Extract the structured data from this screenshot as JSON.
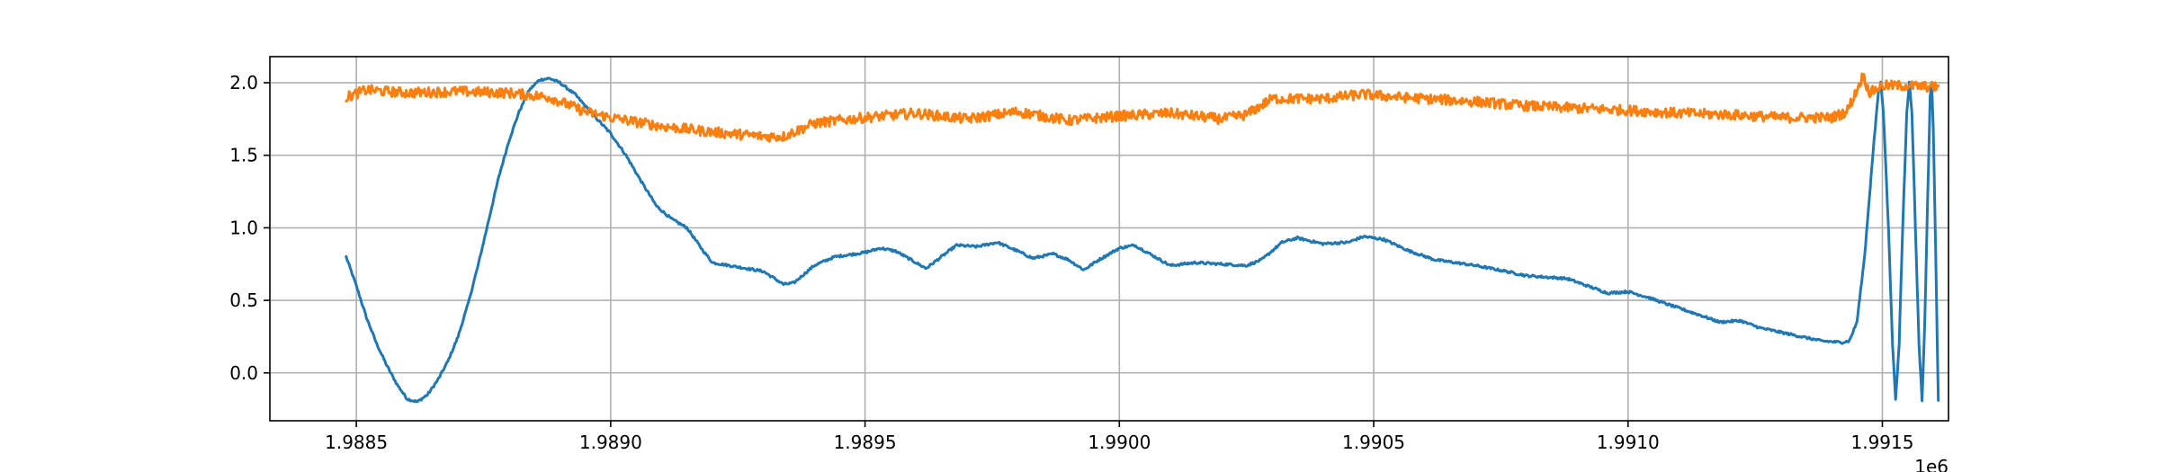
{
  "chart_data": {
    "type": "line",
    "title": "",
    "xlabel": "",
    "ylabel": "",
    "x_offset_label": "1e6",
    "xlim": [
      1988330,
      1991630
    ],
    "ylim": [
      -0.33,
      2.18
    ],
    "grid": true,
    "x_ticks": [
      {
        "value": 1988500,
        "label": "1.9885"
      },
      {
        "value": 1989000,
        "label": "1.9890"
      },
      {
        "value": 1989500,
        "label": "1.9895"
      },
      {
        "value": 1990000,
        "label": "1.9900"
      },
      {
        "value": 1990500,
        "label": "1.9905"
      },
      {
        "value": 1991000,
        "label": "1.9910"
      },
      {
        "value": 1991500,
        "label": "1.9915"
      }
    ],
    "y_ticks": [
      {
        "value": 0.0,
        "label": "0.0"
      },
      {
        "value": 0.5,
        "label": "0.5"
      },
      {
        "value": 1.0,
        "label": "1.0"
      },
      {
        "value": 1.5,
        "label": "1.5"
      },
      {
        "value": 2.0,
        "label": "2.0"
      }
    ],
    "series": [
      {
        "color": "#1f77b4",
        "noise": 0.008,
        "points": [
          [
            1988480,
            0.8
          ],
          [
            1988500,
            0.6
          ],
          [
            1988520,
            0.38
          ],
          [
            1988540,
            0.2
          ],
          [
            1988560,
            0.05
          ],
          [
            1988580,
            -0.08
          ],
          [
            1988600,
            -0.18
          ],
          [
            1988620,
            -0.2
          ],
          [
            1988640,
            -0.15
          ],
          [
            1988660,
            -0.05
          ],
          [
            1988680,
            0.08
          ],
          [
            1988700,
            0.25
          ],
          [
            1988720,
            0.48
          ],
          [
            1988740,
            0.75
          ],
          [
            1988760,
            1.05
          ],
          [
            1988780,
            1.35
          ],
          [
            1988800,
            1.6
          ],
          [
            1988820,
            1.8
          ],
          [
            1988840,
            1.95
          ],
          [
            1988860,
            2.02
          ],
          [
            1988880,
            2.03
          ],
          [
            1988900,
            2.0
          ],
          [
            1988930,
            1.92
          ],
          [
            1988960,
            1.8
          ],
          [
            1989000,
            1.65
          ],
          [
            1989030,
            1.5
          ],
          [
            1989060,
            1.32
          ],
          [
            1989090,
            1.15
          ],
          [
            1989120,
            1.06
          ],
          [
            1989150,
            1.0
          ],
          [
            1989180,
            0.85
          ],
          [
            1989200,
            0.76
          ],
          [
            1989250,
            0.73
          ],
          [
            1989300,
            0.7
          ],
          [
            1989340,
            0.61
          ],
          [
            1989360,
            0.62
          ],
          [
            1989400,
            0.74
          ],
          [
            1989440,
            0.8
          ],
          [
            1989500,
            0.83
          ],
          [
            1989530,
            0.86
          ],
          [
            1989560,
            0.84
          ],
          [
            1989600,
            0.76
          ],
          [
            1989620,
            0.72
          ],
          [
            1989650,
            0.8
          ],
          [
            1989680,
            0.88
          ],
          [
            1989720,
            0.87
          ],
          [
            1989760,
            0.9
          ],
          [
            1989800,
            0.84
          ],
          [
            1989830,
            0.79
          ],
          [
            1989870,
            0.82
          ],
          [
            1989900,
            0.78
          ],
          [
            1989930,
            0.71
          ],
          [
            1989960,
            0.78
          ],
          [
            1990000,
            0.86
          ],
          [
            1990030,
            0.88
          ],
          [
            1990060,
            0.82
          ],
          [
            1990100,
            0.74
          ],
          [
            1990150,
            0.76
          ],
          [
            1990200,
            0.75
          ],
          [
            1990250,
            0.74
          ],
          [
            1990280,
            0.78
          ],
          [
            1990320,
            0.9
          ],
          [
            1990350,
            0.93
          ],
          [
            1990400,
            0.89
          ],
          [
            1990450,
            0.9
          ],
          [
            1990480,
            0.94
          ],
          [
            1990520,
            0.92
          ],
          [
            1990570,
            0.84
          ],
          [
            1990620,
            0.78
          ],
          [
            1990700,
            0.74
          ],
          [
            1990760,
            0.7
          ],
          [
            1990800,
            0.67
          ],
          [
            1990880,
            0.65
          ],
          [
            1990920,
            0.6
          ],
          [
            1990960,
            0.55
          ],
          [
            1991000,
            0.56
          ],
          [
            1991040,
            0.52
          ],
          [
            1991080,
            0.47
          ],
          [
            1991140,
            0.4
          ],
          [
            1991180,
            0.35
          ],
          [
            1991220,
            0.36
          ],
          [
            1991260,
            0.31
          ],
          [
            1991300,
            0.28
          ],
          [
            1991340,
            0.25
          ],
          [
            1991380,
            0.22
          ],
          [
            1991420,
            0.21
          ],
          [
            1991435,
            0.22
          ],
          [
            1991450,
            0.35
          ],
          [
            1991465,
            0.8
          ],
          [
            1991480,
            1.45
          ],
          [
            1991492,
            1.93
          ],
          [
            1991497,
            2.0
          ],
          [
            1991502,
            1.8
          ],
          [
            1991512,
            1.0
          ],
          [
            1991520,
            0.2
          ],
          [
            1991526,
            -0.19
          ],
          [
            1991533,
            0.2
          ],
          [
            1991540,
            1.0
          ],
          [
            1991548,
            1.8
          ],
          [
            1991553,
            2.0
          ],
          [
            1991558,
            1.8
          ],
          [
            1991565,
            1.0
          ],
          [
            1991572,
            0.2
          ],
          [
            1991578,
            -0.19
          ],
          [
            1991583,
            0.3
          ],
          [
            1991589,
            1.2
          ],
          [
            1991594,
            1.9
          ],
          [
            1991597,
            2.0
          ],
          [
            1991600,
            1.7
          ],
          [
            1991605,
            0.8
          ],
          [
            1991610,
            -0.19
          ]
        ]
      },
      {
        "color": "#ff7f0e",
        "noise": 0.035,
        "points": [
          [
            1988480,
            1.9
          ],
          [
            1988520,
            1.95
          ],
          [
            1988600,
            1.93
          ],
          [
            1988700,
            1.94
          ],
          [
            1988800,
            1.93
          ],
          [
            1988880,
            1.9
          ],
          [
            1988950,
            1.8
          ],
          [
            1989000,
            1.76
          ],
          [
            1989100,
            1.7
          ],
          [
            1989200,
            1.66
          ],
          [
            1989300,
            1.63
          ],
          [
            1989340,
            1.63
          ],
          [
            1989400,
            1.72
          ],
          [
            1989500,
            1.76
          ],
          [
            1989600,
            1.79
          ],
          [
            1989700,
            1.75
          ],
          [
            1989800,
            1.8
          ],
          [
            1989900,
            1.74
          ],
          [
            1990000,
            1.77
          ],
          [
            1990100,
            1.79
          ],
          [
            1990200,
            1.75
          ],
          [
            1990250,
            1.78
          ],
          [
            1990300,
            1.89
          ],
          [
            1990400,
            1.89
          ],
          [
            1990480,
            1.92
          ],
          [
            1990550,
            1.9
          ],
          [
            1990700,
            1.87
          ],
          [
            1990800,
            1.84
          ],
          [
            1991000,
            1.81
          ],
          [
            1991100,
            1.79
          ],
          [
            1991200,
            1.78
          ],
          [
            1991300,
            1.76
          ],
          [
            1991400,
            1.76
          ],
          [
            1991430,
            1.8
          ],
          [
            1991450,
            1.95
          ],
          [
            1991462,
            2.05
          ],
          [
            1991475,
            1.93
          ],
          [
            1991500,
            1.98
          ],
          [
            1991550,
            1.98
          ],
          [
            1991600,
            1.97
          ],
          [
            1991610,
            1.98
          ]
        ]
      }
    ]
  }
}
